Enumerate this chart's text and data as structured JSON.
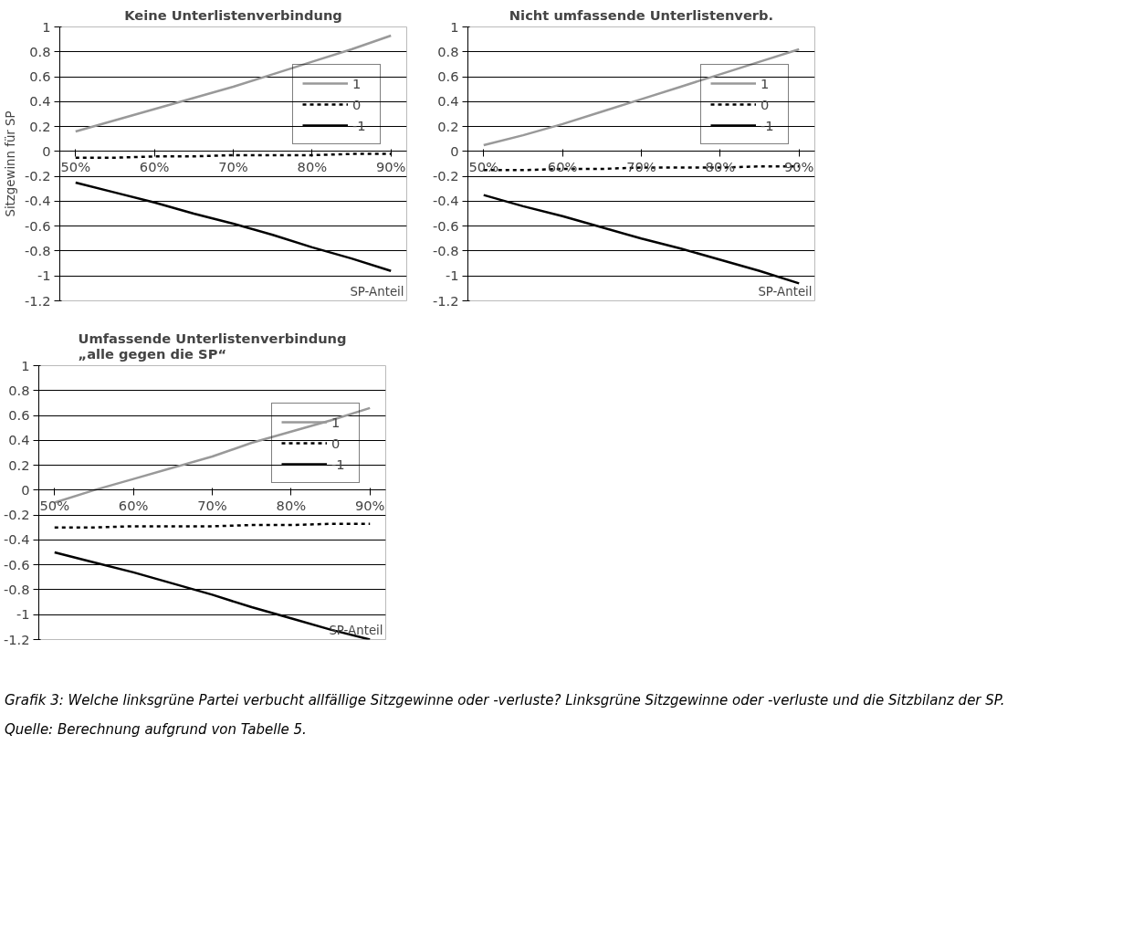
{
  "chart_data": [
    {
      "type": "line",
      "title": "Keine Unterlistenverbindung",
      "xlabel": "SP-Anteil",
      "ylabel": "Sitzgewinn für SP",
      "x": [
        50,
        55,
        60,
        65,
        70,
        75,
        80,
        85,
        90
      ],
      "xlim": [
        48,
        92
      ],
      "xticks": [
        {
          "value": 50,
          "label": "50%"
        },
        {
          "value": 60,
          "label": "60%"
        },
        {
          "value": 70,
          "label": "70%"
        },
        {
          "value": 80,
          "label": "80%"
        },
        {
          "value": 90,
          "label": "90%"
        }
      ],
      "ylim": [
        -1.2,
        1
      ],
      "yticks": [
        -1.2,
        -1,
        -0.8,
        -0.6,
        -0.4,
        -0.2,
        0,
        0.2,
        0.4,
        0.6,
        0.8,
        1
      ],
      "grid": "y",
      "legend": "right",
      "series": [
        {
          "name": "1",
          "color": "#999999",
          "line_style": "solid",
          "values": [
            0.16,
            0.25,
            0.34,
            0.43,
            0.52,
            0.62,
            0.72,
            0.82,
            0.93
          ]
        },
        {
          "name": "0",
          "color": "#000000",
          "line_style": "dashed",
          "values": [
            -0.05,
            -0.05,
            -0.04,
            -0.04,
            -0.03,
            -0.03,
            -0.03,
            -0.02,
            -0.02
          ]
        },
        {
          "name": "-1",
          "color": "#000000",
          "line_style": "solid",
          "values": [
            -0.25,
            -0.33,
            -0.41,
            -0.5,
            -0.58,
            -0.67,
            -0.77,
            -0.86,
            -0.96
          ]
        }
      ]
    },
    {
      "type": "line",
      "title": "Nicht umfassende Unterlistenverb.",
      "xlabel": "SP-Anteil",
      "x": [
        50,
        55,
        60,
        65,
        70,
        75,
        80,
        85,
        90
      ],
      "xlim": [
        48,
        92
      ],
      "xticks": [
        {
          "value": 50,
          "label": "50%"
        },
        {
          "value": 60,
          "label": "60%"
        },
        {
          "value": 70,
          "label": "70%"
        },
        {
          "value": 80,
          "label": "80%"
        },
        {
          "value": 90,
          "label": "90%"
        }
      ],
      "ylim": [
        -1.2,
        1
      ],
      "yticks": [
        -1.2,
        -1,
        -0.8,
        -0.6,
        -0.4,
        -0.2,
        0,
        0.2,
        0.4,
        0.6,
        0.8,
        1
      ],
      "grid": "y",
      "legend": "right",
      "series": [
        {
          "name": "1",
          "color": "#999999",
          "line_style": "solid",
          "values": [
            0.05,
            0.13,
            0.22,
            0.32,
            0.42,
            0.52,
            0.62,
            0.72,
            0.82
          ]
        },
        {
          "name": "0",
          "color": "#000000",
          "line_style": "dashed",
          "values": [
            -0.15,
            -0.15,
            -0.14,
            -0.14,
            -0.13,
            -0.13,
            -0.13,
            -0.12,
            -0.12
          ]
        },
        {
          "name": "-1",
          "color": "#000000",
          "line_style": "solid",
          "values": [
            -0.35,
            -0.44,
            -0.52,
            -0.61,
            -0.7,
            -0.78,
            -0.87,
            -0.96,
            -1.06
          ]
        }
      ]
    },
    {
      "type": "line",
      "title": "Umfassende Unterlistenverbindung\n„alle gegen die SP“",
      "xlabel": "SP-Anteil",
      "x": [
        50,
        55,
        60,
        65,
        70,
        75,
        80,
        85,
        90
      ],
      "xlim": [
        48,
        92
      ],
      "xticks": [
        {
          "value": 50,
          "label": "50%"
        },
        {
          "value": 60,
          "label": "60%"
        },
        {
          "value": 70,
          "label": "70%"
        },
        {
          "value": 80,
          "label": "80%"
        },
        {
          "value": 90,
          "label": "90%"
        }
      ],
      "ylim": [
        -1.2,
        1
      ],
      "yticks": [
        -1.2,
        -1,
        -0.8,
        -0.6,
        -0.4,
        -0.2,
        0,
        0.2,
        0.4,
        0.6,
        0.8,
        1
      ],
      "grid": "y",
      "legend": "right",
      "annotations": [
        "Grafik 3: Welche linksgrüne Partei verbucht allfällige Sitzgewinne oder -verluste? Linksgrüne Sitzgewinne oder -verluste und die Sitzbilanz der SP.",
        "Quelle: Berechnung aufgrund von Tabelle 5."
      ],
      "series": [
        {
          "name": "1",
          "color": "#999999",
          "line_style": "solid",
          "values": [
            -0.1,
            0.0,
            0.09,
            0.18,
            0.27,
            0.38,
            0.47,
            0.56,
            0.66
          ]
        },
        {
          "name": "0",
          "color": "#000000",
          "line_style": "dashed",
          "values": [
            -0.3,
            -0.3,
            -0.29,
            -0.29,
            -0.29,
            -0.28,
            -0.28,
            -0.27,
            -0.27
          ]
        },
        {
          "name": "-1",
          "color": "#000000",
          "line_style": "solid",
          "values": [
            -0.5,
            -0.58,
            -0.66,
            -0.75,
            -0.84,
            -0.94,
            -1.03,
            -1.12,
            -1.2
          ]
        }
      ]
    }
  ]
}
